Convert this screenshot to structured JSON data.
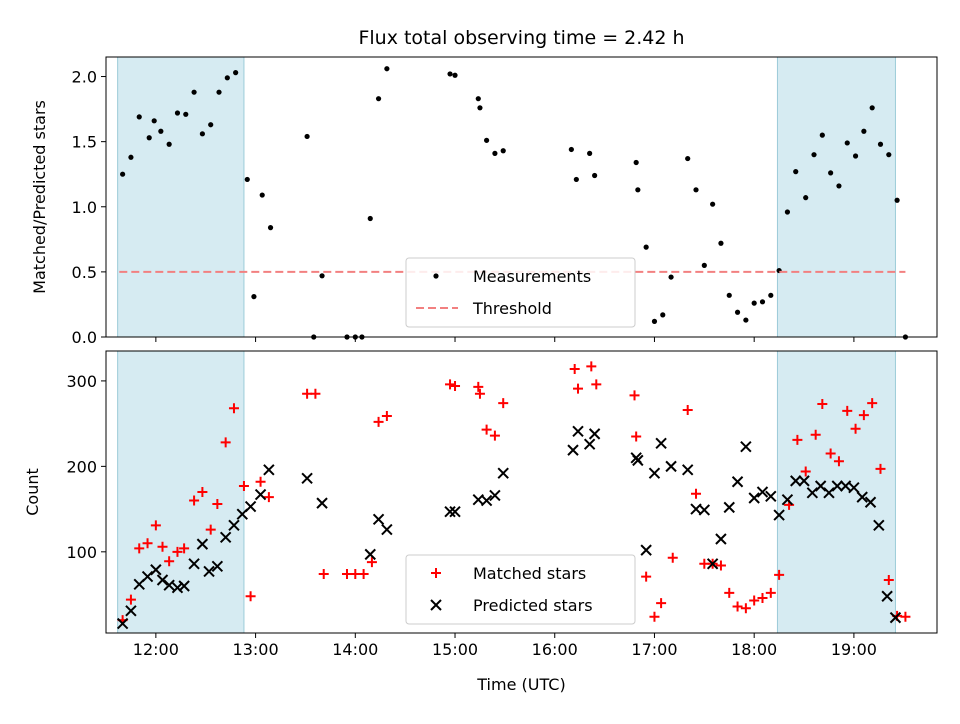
{
  "chart_data": [
    {
      "type": "scatter",
      "title": "Flux total observing time = 2.42 h",
      "xlabel": "",
      "ylabel": "Matched/Predicted stars",
      "xlim": [
        "11:30",
        "19:50"
      ],
      "ylim": [
        0,
        2.15
      ],
      "x_ticks": [
        "12:00",
        "13:00",
        "14:00",
        "15:00",
        "16:00",
        "17:00",
        "18:00",
        "19:00"
      ],
      "y_ticks": [
        "0.0",
        "0.5",
        "1.0",
        "1.5",
        "2.0"
      ],
      "shaded_intervals": [
        [
          "11:37",
          "12:53"
        ],
        [
          "18:14",
          "19:25"
        ]
      ],
      "legend_position": "lower center",
      "series": [
        {
          "name": "Measurements",
          "marker": "dot",
          "color": "#000000",
          "points": [
            [
              "11:40",
              1.25
            ],
            [
              "11:45",
              1.38
            ],
            [
              "11:50",
              1.69
            ],
            [
              "11:56",
              1.53
            ],
            [
              "11:59",
              1.66
            ],
            [
              "12:03",
              1.58
            ],
            [
              "12:08",
              1.48
            ],
            [
              "12:13",
              1.72
            ],
            [
              "12:18",
              1.71
            ],
            [
              "12:23",
              1.88
            ],
            [
              "12:28",
              1.56
            ],
            [
              "12:33",
              1.63
            ],
            [
              "12:38",
              1.88
            ],
            [
              "12:43",
              1.99
            ],
            [
              "12:48",
              2.03
            ],
            [
              "12:55",
              1.21
            ],
            [
              "12:59",
              0.31
            ],
            [
              "13:04",
              1.09
            ],
            [
              "13:09",
              0.84
            ],
            [
              "13:31",
              1.54
            ],
            [
              "13:35",
              0.0
            ],
            [
              "13:40",
              0.47
            ],
            [
              "13:55",
              0.0
            ],
            [
              "14:00",
              0.0
            ],
            [
              "14:04",
              0.0
            ],
            [
              "14:09",
              0.91
            ],
            [
              "14:14",
              1.83
            ],
            [
              "14:19",
              2.06
            ],
            [
              "14:57",
              2.02
            ],
            [
              "15:00",
              2.01
            ],
            [
              "15:14",
              1.83
            ],
            [
              "15:15",
              1.76
            ],
            [
              "15:19",
              1.51
            ],
            [
              "15:24",
              1.41
            ],
            [
              "15:29",
              1.43
            ],
            [
              "16:10",
              1.44
            ],
            [
              "16:13",
              1.21
            ],
            [
              "16:21",
              1.41
            ],
            [
              "16:24",
              1.24
            ],
            [
              "16:49",
              1.34
            ],
            [
              "16:50",
              1.13
            ],
            [
              "16:55",
              0.69
            ],
            [
              "17:00",
              0.12
            ],
            [
              "17:05",
              0.17
            ],
            [
              "17:10",
              0.46
            ],
            [
              "17:20",
              1.37
            ],
            [
              "17:25",
              1.13
            ],
            [
              "17:30",
              0.55
            ],
            [
              "17:35",
              1.02
            ],
            [
              "17:40",
              0.72
            ],
            [
              "17:45",
              0.32
            ],
            [
              "17:50",
              0.19
            ],
            [
              "17:55",
              0.13
            ],
            [
              "18:00",
              0.26
            ],
            [
              "18:05",
              0.27
            ],
            [
              "18:10",
              0.32
            ],
            [
              "18:15",
              0.51
            ],
            [
              "18:20",
              0.96
            ],
            [
              "18:25",
              1.27
            ],
            [
              "18:31",
              1.07
            ],
            [
              "18:36",
              1.4
            ],
            [
              "18:41",
              1.55
            ],
            [
              "18:46",
              1.26
            ],
            [
              "18:51",
              1.16
            ],
            [
              "18:56",
              1.49
            ],
            [
              "19:01",
              1.39
            ],
            [
              "19:06",
              1.58
            ],
            [
              "19:11",
              1.76
            ],
            [
              "19:16",
              1.48
            ],
            [
              "19:21",
              1.4
            ],
            [
              "19:26",
              1.05
            ],
            [
              "19:31",
              0.0
            ]
          ]
        },
        {
          "name": "Threshold",
          "marker": "dashed-line",
          "color": "#f28080",
          "points": [
            [
              "11:38",
              0.5
            ],
            [
              "19:31",
              0.5
            ]
          ]
        }
      ]
    },
    {
      "type": "scatter",
      "title": "",
      "xlabel": "Time (UTC)",
      "ylabel": "Count",
      "xlim": [
        "11:30",
        "19:50"
      ],
      "ylim": [
        5,
        335
      ],
      "x_ticks": [
        "12:00",
        "13:00",
        "14:00",
        "15:00",
        "16:00",
        "17:00",
        "18:00",
        "19:00"
      ],
      "y_ticks": [
        "100",
        "200",
        "300"
      ],
      "shaded_intervals": [
        [
          "11:37",
          "12:53"
        ],
        [
          "18:14",
          "19:25"
        ]
      ],
      "legend_position": "lower center",
      "series": [
        {
          "name": "Matched stars",
          "marker": "plus",
          "color": "#ff0000",
          "points": [
            [
              "11:40",
              20
            ],
            [
              "11:45",
              44
            ],
            [
              "11:50",
              104
            ],
            [
              "11:55",
              110
            ],
            [
              "12:00",
              131
            ],
            [
              "12:04",
              106
            ],
            [
              "12:08",
              89
            ],
            [
              "12:13",
              100
            ],
            [
              "12:17",
              104
            ],
            [
              "12:23",
              160
            ],
            [
              "12:28",
              170
            ],
            [
              "12:33",
              126
            ],
            [
              "12:37",
              156
            ],
            [
              "12:42",
              228
            ],
            [
              "12:47",
              268
            ],
            [
              "12:53",
              177
            ],
            [
              "12:57",
              48
            ],
            [
              "13:03",
              182
            ],
            [
              "13:08",
              164
            ],
            [
              "13:31",
              285
            ],
            [
              "13:36",
              285
            ],
            [
              "13:41",
              74
            ],
            [
              "13:55",
              74
            ],
            [
              "14:00",
              74
            ],
            [
              "14:05",
              74
            ],
            [
              "14:10",
              88
            ],
            [
              "14:14",
              252
            ],
            [
              "14:19",
              259
            ],
            [
              "14:57",
              296
            ],
            [
              "15:00",
              294
            ],
            [
              "15:14",
              293
            ],
            [
              "15:15",
              285
            ],
            [
              "15:19",
              243
            ],
            [
              "15:24",
              236
            ],
            [
              "15:29",
              274
            ],
            [
              "16:12",
              314
            ],
            [
              "16:14",
              291
            ],
            [
              "16:22",
              317
            ],
            [
              "16:25",
              296
            ],
            [
              "16:48",
              283
            ],
            [
              "16:49",
              235
            ],
            [
              "16:55",
              71
            ],
            [
              "17:00",
              24
            ],
            [
              "17:04",
              40
            ],
            [
              "17:11",
              93
            ],
            [
              "17:20",
              266
            ],
            [
              "17:25",
              168
            ],
            [
              "17:30",
              86
            ],
            [
              "17:35",
              86
            ],
            [
              "17:40",
              84
            ],
            [
              "17:45",
              52
            ],
            [
              "17:50",
              36
            ],
            [
              "17:55",
              34
            ],
            [
              "18:00",
              43
            ],
            [
              "18:05",
              46
            ],
            [
              "18:10",
              52
            ],
            [
              "18:15",
              73
            ],
            [
              "18:21",
              155
            ],
            [
              "18:26",
              231
            ],
            [
              "18:31",
              194
            ],
            [
              "18:37",
              237
            ],
            [
              "18:41",
              273
            ],
            [
              "18:46",
              215
            ],
            [
              "18:51",
              206
            ],
            [
              "18:56",
              265
            ],
            [
              "19:01",
              244
            ],
            [
              "19:06",
              260
            ],
            [
              "19:11",
              274
            ],
            [
              "19:16",
              197
            ],
            [
              "19:21",
              67
            ],
            [
              "19:26",
              25
            ],
            [
              "19:31",
              24
            ]
          ]
        },
        {
          "name": "Predicted stars",
          "marker": "x",
          "color": "#000000",
          "points": [
            [
              "11:40",
              16
            ],
            [
              "11:45",
              31
            ],
            [
              "11:50",
              62
            ],
            [
              "11:55",
              71
            ],
            [
              "12:00",
              79
            ],
            [
              "12:04",
              67
            ],
            [
              "12:08",
              61
            ],
            [
              "12:13",
              58
            ],
            [
              "12:17",
              60
            ],
            [
              "12:23",
              86
            ],
            [
              "12:28",
              109
            ],
            [
              "12:32",
              77
            ],
            [
              "12:37",
              83
            ],
            [
              "12:42",
              117
            ],
            [
              "12:47",
              131
            ],
            [
              "12:52",
              144
            ],
            [
              "12:57",
              153
            ],
            [
              "13:03",
              167
            ],
            [
              "13:08",
              196
            ],
            [
              "13:31",
              186
            ],
            [
              "13:40",
              157
            ],
            [
              "14:09",
              97
            ],
            [
              "14:14",
              138
            ],
            [
              "14:19",
              126
            ],
            [
              "14:57",
              147
            ],
            [
              "15:00",
              147
            ],
            [
              "15:14",
              161
            ],
            [
              "15:19",
              160
            ],
            [
              "15:24",
              166
            ],
            [
              "15:29",
              192
            ],
            [
              "16:11",
              219
            ],
            [
              "16:14",
              241
            ],
            [
              "16:21",
              226
            ],
            [
              "16:24",
              238
            ],
            [
              "16:49",
              210
            ],
            [
              "16:50",
              207
            ],
            [
              "16:55",
              102
            ],
            [
              "17:00",
              192
            ],
            [
              "17:04",
              227
            ],
            [
              "17:10",
              200
            ],
            [
              "17:20",
              196
            ],
            [
              "17:25",
              150
            ],
            [
              "17:30",
              149
            ],
            [
              "17:35",
              86
            ],
            [
              "17:40",
              115
            ],
            [
              "17:45",
              152
            ],
            [
              "17:50",
              182
            ],
            [
              "17:55",
              223
            ],
            [
              "18:00",
              163
            ],
            [
              "18:05",
              170
            ],
            [
              "18:10",
              165
            ],
            [
              "18:15",
              143
            ],
            [
              "18:20",
              161
            ],
            [
              "18:25",
              183
            ],
            [
              "18:30",
              183
            ],
            [
              "18:35",
              169
            ],
            [
              "18:40",
              177
            ],
            [
              "18:45",
              169
            ],
            [
              "18:50",
              177
            ],
            [
              "18:55",
              177
            ],
            [
              "19:00",
              175
            ],
            [
              "19:05",
              164
            ],
            [
              "19:10",
              158
            ],
            [
              "19:15",
              131
            ],
            [
              "19:20",
              48
            ],
            [
              "19:25",
              23
            ]
          ]
        }
      ]
    }
  ]
}
